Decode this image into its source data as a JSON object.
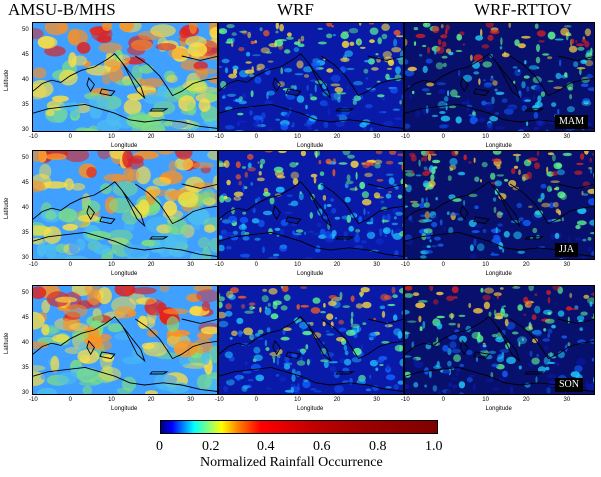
{
  "columns": [
    "AMSU-B/MHS",
    "WRF",
    "WRF-RTTOV"
  ],
  "rows": [
    {
      "season": "MAM"
    },
    {
      "season": "JJA"
    },
    {
      "season": "SON"
    }
  ],
  "axes": {
    "xlabel": "Longitude",
    "ylabel": "Latitude",
    "xticks": [
      "-10",
      "0",
      "10",
      "20",
      "30"
    ],
    "yticks": [
      "30",
      "35",
      "40",
      "45",
      "50"
    ]
  },
  "colorbar": {
    "title": "Normalized Rainfall Occurrence",
    "ticks": [
      "0",
      "0.2",
      "0.4",
      "0.6",
      "0.8",
      "1.0"
    ],
    "range": [
      0,
      1
    ]
  },
  "colors": {
    "amsu_background": "#3fa0ff",
    "wrf_background": "#0a1aa8",
    "rttov_background": "#08106e",
    "high": "#d01010"
  }
}
